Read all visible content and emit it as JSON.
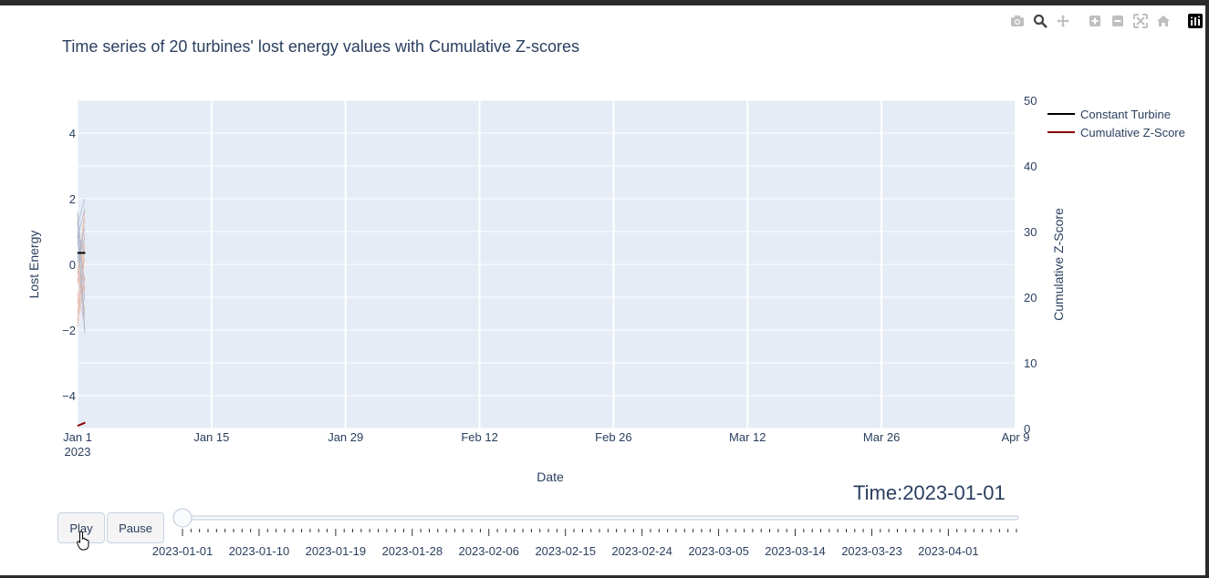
{
  "modebar": {
    "icons": [
      "camera-icon",
      "zoom-icon",
      "pan-icon",
      "zoom-in-icon",
      "zoom-out-icon",
      "autoscale-icon",
      "home-icon",
      "plotly-logo-icon"
    ]
  },
  "controls": {
    "play_label": "Play",
    "pause_label": "Pause",
    "current_value_prefix": "Time:",
    "current_value": "2023-01-01",
    "slider_position": 0,
    "slider_tick_labels": [
      "2023-01-01",
      "2023-01-10",
      "2023-01-19",
      "2023-01-28",
      "2023-02-06",
      "2023-02-15",
      "2023-02-24",
      "2023-03-05",
      "2023-03-14",
      "2023-03-23",
      "2023-04-01"
    ]
  },
  "chart_data": {
    "type": "line",
    "title": "Time series of 20 turbines' lost energy values with Cumulative Z-scores",
    "xlabel": "Date",
    "ylabel": "Lost Energy",
    "y2label": "Cumulative Z-Score",
    "xlim": [
      "2023-01-01",
      "2023-04-09"
    ],
    "ylim": [
      -5,
      5
    ],
    "y2lim": [
      0,
      50
    ],
    "x_ticks": [
      "Jan 1",
      "Jan 15",
      "Jan 29",
      "Feb 12",
      "Feb 26",
      "Mar 12",
      "Mar 26",
      "Apr 9"
    ],
    "x_tick_sublabel": "2023",
    "y_ticks": [
      4,
      2,
      0,
      -2,
      -4
    ],
    "y2_ticks": [
      50,
      40,
      30,
      20,
      10,
      0
    ],
    "grid": true,
    "legend_position": "top-right",
    "colors": {
      "plot_bg": "#e5ecf6",
      "constant": "#000000",
      "zscore": "#8b0000",
      "turbines_a": "#e8b4a0",
      "turbines_b": "#a8b4cc"
    },
    "legend": [
      "Constant Turbine",
      "Cumulative Z-Score"
    ],
    "series": [
      {
        "name": "Constant Turbine",
        "x": [
          "2023-01-01",
          "2023-01-01.5"
        ],
        "values": [
          0.35,
          0.35
        ],
        "axis": "y"
      },
      {
        "name": "Cumulative Z-Score",
        "x": [
          "2023-01-01",
          "2023-01-01.8"
        ],
        "values": [
          0.4,
          0.9
        ],
        "axis": "y2"
      }
    ],
    "turbine_traces": [
      [
        1.5,
        -0.8
      ],
      [
        0.9,
        -1.6
      ],
      [
        -1.9,
        0.6
      ],
      [
        1.2,
        2.0
      ],
      [
        -0.3,
        1.6
      ],
      [
        0.4,
        -2.0
      ],
      [
        -1.2,
        0.9
      ],
      [
        0.7,
        -0.5
      ],
      [
        -0.6,
        1.4
      ],
      [
        1.6,
        -1.1
      ],
      [
        -1.5,
        0.2
      ],
      [
        0.2,
        1.1
      ],
      [
        -0.9,
        -1.8
      ],
      [
        1.0,
        0.3
      ],
      [
        -0.2,
        -1.4
      ],
      [
        0.8,
        1.7
      ],
      [
        -1.7,
        -0.4
      ],
      [
        0.1,
        0.8
      ],
      [
        -0.4,
        -0.9
      ],
      [
        1.3,
        -2.1
      ]
    ]
  }
}
